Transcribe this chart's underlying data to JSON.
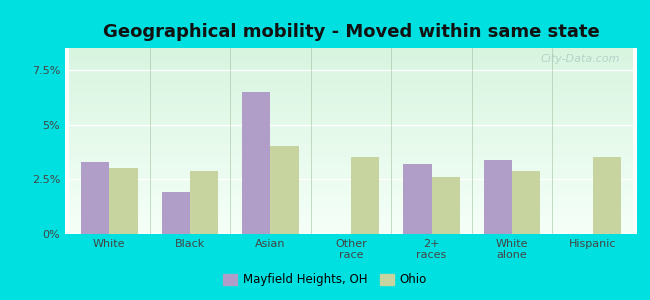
{
  "title": "Geographical mobility - Moved within same state",
  "categories": [
    "White",
    "Black",
    "Asian",
    "Other\nrace",
    "2+\nraces",
    "White\nalone",
    "Hispanic"
  ],
  "mayfield_values": [
    3.3,
    1.9,
    6.5,
    0.0,
    3.2,
    3.4,
    0.0
  ],
  "ohio_values": [
    3.0,
    2.9,
    4.0,
    3.5,
    2.6,
    2.9,
    3.5
  ],
  "mayfield_color": "#b09ec9",
  "ohio_color": "#c8d4a0",
  "yticks": [
    0,
    2.5,
    5.0,
    7.5
  ],
  "ytick_labels": [
    "0%",
    "2.5%",
    "5%",
    "7.5%"
  ],
  "ylim": [
    0,
    8.5
  ],
  "title_fontsize": 13,
  "legend_label1": "Mayfield Heights, OH",
  "legend_label2": "Ohio",
  "bar_width": 0.35,
  "cyan_bg": "#00e0e0",
  "plot_bg_colors": [
    "#f5fff8",
    "#d8f5e0"
  ],
  "watermark": "City-Data.com"
}
